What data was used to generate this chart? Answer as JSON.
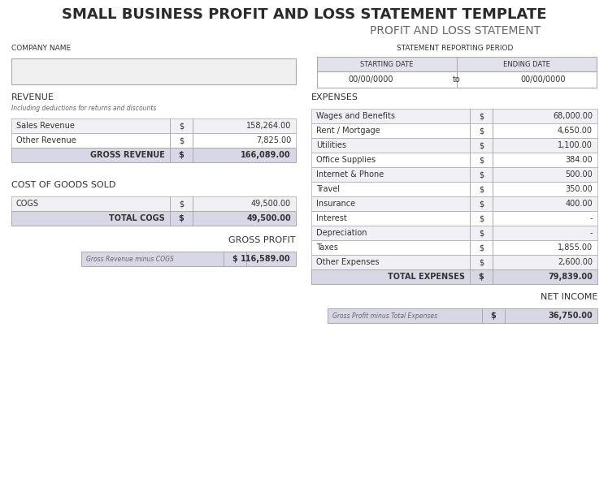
{
  "title1": "SMALL BUSINESS PROFIT AND LOSS STATEMENT TEMPLATE",
  "title2": "PROFIT AND LOSS STATEMENT",
  "company_name_label": "COMPANY NAME",
  "statement_period_label": "STATEMENT REPORTING PERIOD",
  "starting_date_label": "STARTING DATE",
  "ending_date_label": "ENDING DATE",
  "starting_date_val": "00/00/0000",
  "ending_date_val": "00/00/0000",
  "to_label": "to",
  "revenue_label": "REVENUE",
  "revenue_sub": "Including deductions for returns and discounts",
  "revenue_rows": [
    [
      "Sales Revenue",
      "$",
      "158,264.00"
    ],
    [
      "Other Revenue",
      "$",
      "7,825.00"
    ]
  ],
  "gross_revenue_label": "GROSS REVENUE",
  "gross_revenue_val": "166,089.00",
  "cogs_label": "COST OF GOODS SOLD",
  "cogs_rows": [
    [
      "COGS",
      "$",
      "49,500.00"
    ]
  ],
  "total_cogs_label": "TOTAL COGS",
  "total_cogs_val": "49,500.00",
  "gross_profit_label": "GROSS PROFIT",
  "gross_profit_sub": "Gross Revenue minus COGS",
  "gross_profit_val": "116,589.00",
  "expenses_label": "EXPENSES",
  "expenses_rows": [
    [
      "Wages and Benefits",
      "$",
      "68,000.00"
    ],
    [
      "Rent / Mortgage",
      "$",
      "4,650.00"
    ],
    [
      "Utilities",
      "$",
      "1,100.00"
    ],
    [
      "Office Supplies",
      "$",
      "384.00"
    ],
    [
      "Internet & Phone",
      "$",
      "500.00"
    ],
    [
      "Travel",
      "$",
      "350.00"
    ],
    [
      "Insurance",
      "$",
      "400.00"
    ],
    [
      "Interest",
      "$",
      "-"
    ],
    [
      "Depreciation",
      "$",
      "-"
    ],
    [
      "Taxes",
      "$",
      "1,855.00"
    ],
    [
      "Other Expenses",
      "$",
      "2,600.00"
    ]
  ],
  "total_expenses_label": "TOTAL EXPENSES",
  "total_expenses_val": "79,839.00",
  "net_income_label": "NET INCOME",
  "net_income_sub": "Gross Profit minus Total Expenses",
  "net_income_val": "36,750.00",
  "bg_color": "#ffffff",
  "row_alt1": "#f0f0f5",
  "row_alt2": "#ffffff",
  "total_row_bg": "#d8d8e4",
  "header_row_bg": "#e2e2ea",
  "border_color": "#aaaaaa",
  "text_dark": "#333333",
  "text_mid": "#555555",
  "text_light": "#777777",
  "title1_size": 13,
  "title2_size": 10,
  "section_size": 8,
  "row_size": 7,
  "sub_size": 6.5
}
